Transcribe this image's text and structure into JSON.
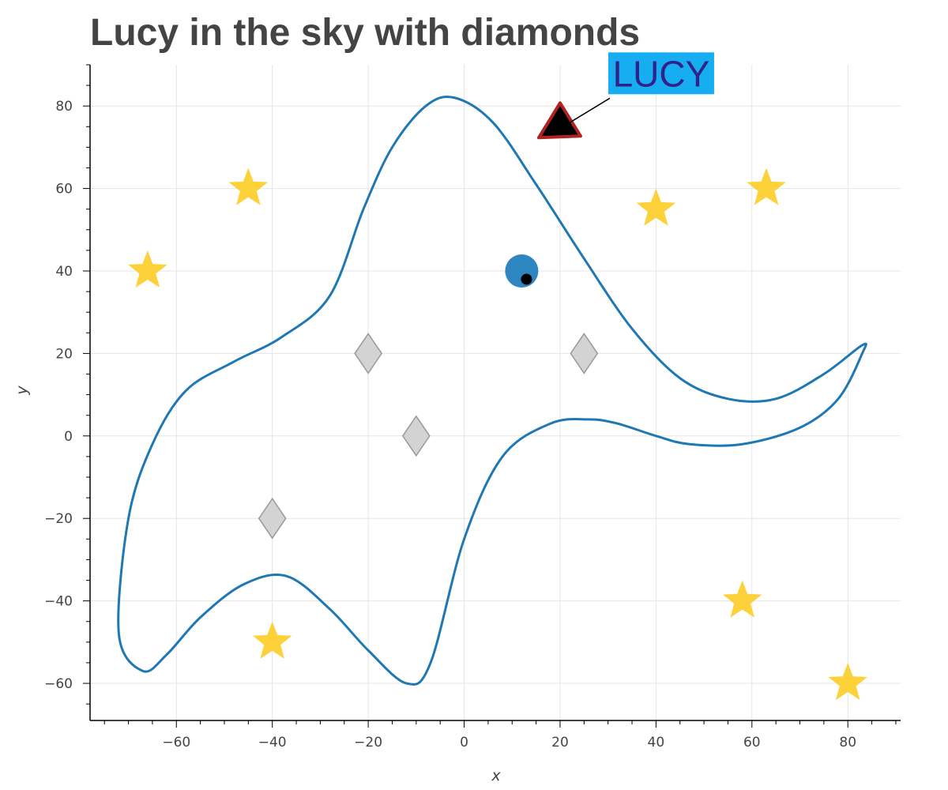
{
  "chart_data": {
    "type": "scatter",
    "title": "Lucy in the sky with diamonds",
    "xlabel": "x",
    "ylabel": "y",
    "xlim": [
      -78,
      91
    ],
    "ylim": [
      -69,
      90
    ],
    "grid": true,
    "x_ticks": [
      -60,
      -40,
      -20,
      0,
      20,
      40,
      60,
      80
    ],
    "y_ticks": [
      -60,
      -40,
      -20,
      0,
      20,
      40,
      60,
      80
    ],
    "series": [
      {
        "marker": "star",
        "color": "#fdd13a",
        "points": [
          [
            -45,
            60
          ],
          [
            -66,
            40
          ],
          [
            -40,
            -50
          ],
          [
            40,
            55
          ],
          [
            63,
            60
          ],
          [
            58,
            -40
          ],
          [
            80,
            -60
          ]
        ]
      },
      {
        "marker": "diamond",
        "color": "#d3d3d3",
        "points": [
          [
            -20,
            20
          ],
          [
            25,
            20
          ],
          [
            -10,
            0
          ],
          [
            -40,
            -20
          ]
        ]
      },
      {
        "marker": "circle",
        "color": "#2e86c1",
        "points": [
          [
            12,
            40
          ]
        ]
      },
      {
        "marker": "dot",
        "color": "#000000",
        "points": [
          [
            13,
            38
          ]
        ]
      },
      {
        "marker": "triangle",
        "color": "#000000",
        "stroke": "#b22222",
        "points": [
          [
            20,
            75
          ]
        ]
      }
    ],
    "curve": {
      "color": "#1f77b4",
      "points": [
        [
          -67,
          -57
        ],
        [
          -72,
          -48
        ],
        [
          -70,
          -20
        ],
        [
          -65,
          -2
        ],
        [
          -58,
          11
        ],
        [
          -48,
          18
        ],
        [
          -38,
          24
        ],
        [
          -28,
          34
        ],
        [
          -21,
          55
        ],
        [
          -15,
          70
        ],
        [
          -8,
          80
        ],
        [
          -2,
          82
        ],
        [
          6,
          76
        ],
        [
          15,
          61
        ],
        [
          25,
          43
        ],
        [
          35,
          26
        ],
        [
          45,
          14
        ],
        [
          55,
          9
        ],
        [
          65,
          9
        ],
        [
          75,
          15
        ],
        [
          83,
          22
        ],
        [
          83,
          20
        ],
        [
          78,
          9
        ],
        [
          70,
          2
        ],
        [
          58,
          -2
        ],
        [
          47,
          -2
        ],
        [
          40,
          0
        ],
        [
          32,
          3
        ],
        [
          26,
          4
        ],
        [
          18,
          3
        ],
        [
          8,
          -5
        ],
        [
          0,
          -25
        ],
        [
          -7,
          -55
        ],
        [
          -12,
          -60
        ],
        [
          -20,
          -52
        ],
        [
          -28,
          -42
        ],
        [
          -37,
          -34
        ],
        [
          -46,
          -36
        ],
        [
          -55,
          -44
        ],
        [
          -62,
          -53
        ],
        [
          -67,
          -57
        ]
      ]
    },
    "annotation": {
      "text": "LUCY",
      "x": 20,
      "y": 75,
      "bg": "#16aef0",
      "color": "#31218b"
    }
  }
}
